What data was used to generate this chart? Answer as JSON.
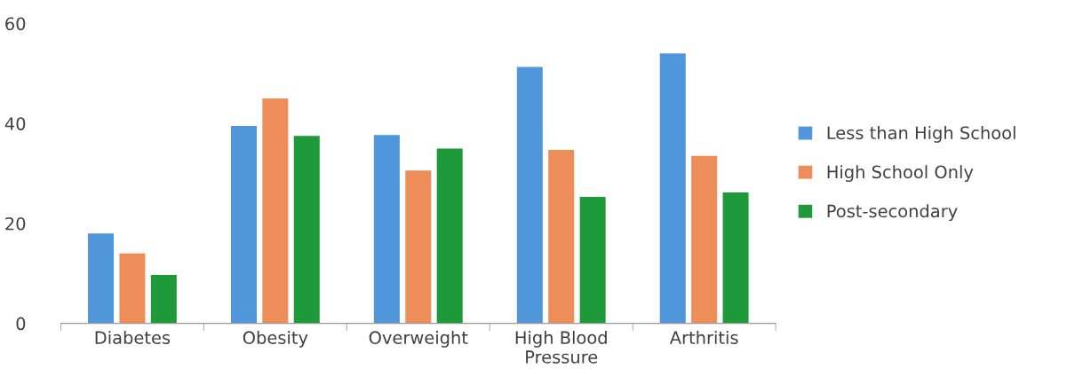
{
  "chart_data": {
    "type": "bar",
    "categories": [
      "Diabetes",
      "Obesity",
      "Overweight",
      "High Blood\nPressure",
      "Arthritis"
    ],
    "series": [
      {
        "name": "Less than High School",
        "color": "#4f96db",
        "values": [
          18,
          39.5,
          37.7,
          51.3,
          54
        ]
      },
      {
        "name": "High School Only",
        "color": "#ed8d5a",
        "values": [
          14,
          45,
          30.6,
          34.7,
          33.5
        ]
      },
      {
        "name": "Post-secondary",
        "color": "#1f9a3b",
        "values": [
          9.7,
          37.5,
          35,
          25.3,
          26.2
        ]
      }
    ],
    "ylim": [
      0,
      60
    ],
    "yticks": [
      0,
      20,
      40,
      60
    ],
    "grid": false,
    "legend": "right"
  }
}
